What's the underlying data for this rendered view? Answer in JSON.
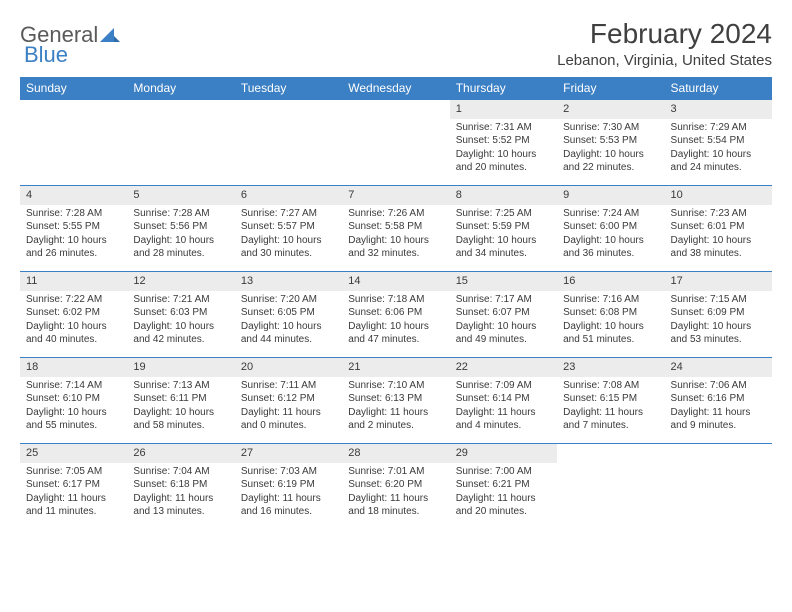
{
  "logo": {
    "general": "General",
    "blue": "Blue"
  },
  "title": "February 2024",
  "location": "Lebanon, Virginia, United States",
  "colors": {
    "header_bg": "#3b7fc4",
    "header_text": "#ffffff",
    "daynum_bg": "#ececec",
    "text": "#3a3a3a",
    "border": "#3b7fc4"
  },
  "daynames": [
    "Sunday",
    "Monday",
    "Tuesday",
    "Wednesday",
    "Thursday",
    "Friday",
    "Saturday"
  ],
  "weeks": [
    [
      {
        "empty": true
      },
      {
        "empty": true
      },
      {
        "empty": true
      },
      {
        "empty": true
      },
      {
        "num": "1",
        "sunrise": "Sunrise: 7:31 AM",
        "sunset": "Sunset: 5:52 PM",
        "daylight": "Daylight: 10 hours and 20 minutes."
      },
      {
        "num": "2",
        "sunrise": "Sunrise: 7:30 AM",
        "sunset": "Sunset: 5:53 PM",
        "daylight": "Daylight: 10 hours and 22 minutes."
      },
      {
        "num": "3",
        "sunrise": "Sunrise: 7:29 AM",
        "sunset": "Sunset: 5:54 PM",
        "daylight": "Daylight: 10 hours and 24 minutes."
      }
    ],
    [
      {
        "num": "4",
        "sunrise": "Sunrise: 7:28 AM",
        "sunset": "Sunset: 5:55 PM",
        "daylight": "Daylight: 10 hours and 26 minutes."
      },
      {
        "num": "5",
        "sunrise": "Sunrise: 7:28 AM",
        "sunset": "Sunset: 5:56 PM",
        "daylight": "Daylight: 10 hours and 28 minutes."
      },
      {
        "num": "6",
        "sunrise": "Sunrise: 7:27 AM",
        "sunset": "Sunset: 5:57 PM",
        "daylight": "Daylight: 10 hours and 30 minutes."
      },
      {
        "num": "7",
        "sunrise": "Sunrise: 7:26 AM",
        "sunset": "Sunset: 5:58 PM",
        "daylight": "Daylight: 10 hours and 32 minutes."
      },
      {
        "num": "8",
        "sunrise": "Sunrise: 7:25 AM",
        "sunset": "Sunset: 5:59 PM",
        "daylight": "Daylight: 10 hours and 34 minutes."
      },
      {
        "num": "9",
        "sunrise": "Sunrise: 7:24 AM",
        "sunset": "Sunset: 6:00 PM",
        "daylight": "Daylight: 10 hours and 36 minutes."
      },
      {
        "num": "10",
        "sunrise": "Sunrise: 7:23 AM",
        "sunset": "Sunset: 6:01 PM",
        "daylight": "Daylight: 10 hours and 38 minutes."
      }
    ],
    [
      {
        "num": "11",
        "sunrise": "Sunrise: 7:22 AM",
        "sunset": "Sunset: 6:02 PM",
        "daylight": "Daylight: 10 hours and 40 minutes."
      },
      {
        "num": "12",
        "sunrise": "Sunrise: 7:21 AM",
        "sunset": "Sunset: 6:03 PM",
        "daylight": "Daylight: 10 hours and 42 minutes."
      },
      {
        "num": "13",
        "sunrise": "Sunrise: 7:20 AM",
        "sunset": "Sunset: 6:05 PM",
        "daylight": "Daylight: 10 hours and 44 minutes."
      },
      {
        "num": "14",
        "sunrise": "Sunrise: 7:18 AM",
        "sunset": "Sunset: 6:06 PM",
        "daylight": "Daylight: 10 hours and 47 minutes."
      },
      {
        "num": "15",
        "sunrise": "Sunrise: 7:17 AM",
        "sunset": "Sunset: 6:07 PM",
        "daylight": "Daylight: 10 hours and 49 minutes."
      },
      {
        "num": "16",
        "sunrise": "Sunrise: 7:16 AM",
        "sunset": "Sunset: 6:08 PM",
        "daylight": "Daylight: 10 hours and 51 minutes."
      },
      {
        "num": "17",
        "sunrise": "Sunrise: 7:15 AM",
        "sunset": "Sunset: 6:09 PM",
        "daylight": "Daylight: 10 hours and 53 minutes."
      }
    ],
    [
      {
        "num": "18",
        "sunrise": "Sunrise: 7:14 AM",
        "sunset": "Sunset: 6:10 PM",
        "daylight": "Daylight: 10 hours and 55 minutes."
      },
      {
        "num": "19",
        "sunrise": "Sunrise: 7:13 AM",
        "sunset": "Sunset: 6:11 PM",
        "daylight": "Daylight: 10 hours and 58 minutes."
      },
      {
        "num": "20",
        "sunrise": "Sunrise: 7:11 AM",
        "sunset": "Sunset: 6:12 PM",
        "daylight": "Daylight: 11 hours and 0 minutes."
      },
      {
        "num": "21",
        "sunrise": "Sunrise: 7:10 AM",
        "sunset": "Sunset: 6:13 PM",
        "daylight": "Daylight: 11 hours and 2 minutes."
      },
      {
        "num": "22",
        "sunrise": "Sunrise: 7:09 AM",
        "sunset": "Sunset: 6:14 PM",
        "daylight": "Daylight: 11 hours and 4 minutes."
      },
      {
        "num": "23",
        "sunrise": "Sunrise: 7:08 AM",
        "sunset": "Sunset: 6:15 PM",
        "daylight": "Daylight: 11 hours and 7 minutes."
      },
      {
        "num": "24",
        "sunrise": "Sunrise: 7:06 AM",
        "sunset": "Sunset: 6:16 PM",
        "daylight": "Daylight: 11 hours and 9 minutes."
      }
    ],
    [
      {
        "num": "25",
        "sunrise": "Sunrise: 7:05 AM",
        "sunset": "Sunset: 6:17 PM",
        "daylight": "Daylight: 11 hours and 11 minutes."
      },
      {
        "num": "26",
        "sunrise": "Sunrise: 7:04 AM",
        "sunset": "Sunset: 6:18 PM",
        "daylight": "Daylight: 11 hours and 13 minutes."
      },
      {
        "num": "27",
        "sunrise": "Sunrise: 7:03 AM",
        "sunset": "Sunset: 6:19 PM",
        "daylight": "Daylight: 11 hours and 16 minutes."
      },
      {
        "num": "28",
        "sunrise": "Sunrise: 7:01 AM",
        "sunset": "Sunset: 6:20 PM",
        "daylight": "Daylight: 11 hours and 18 minutes."
      },
      {
        "num": "29",
        "sunrise": "Sunrise: 7:00 AM",
        "sunset": "Sunset: 6:21 PM",
        "daylight": "Daylight: 11 hours and 20 minutes."
      },
      {
        "empty": true
      },
      {
        "empty": true
      }
    ]
  ]
}
